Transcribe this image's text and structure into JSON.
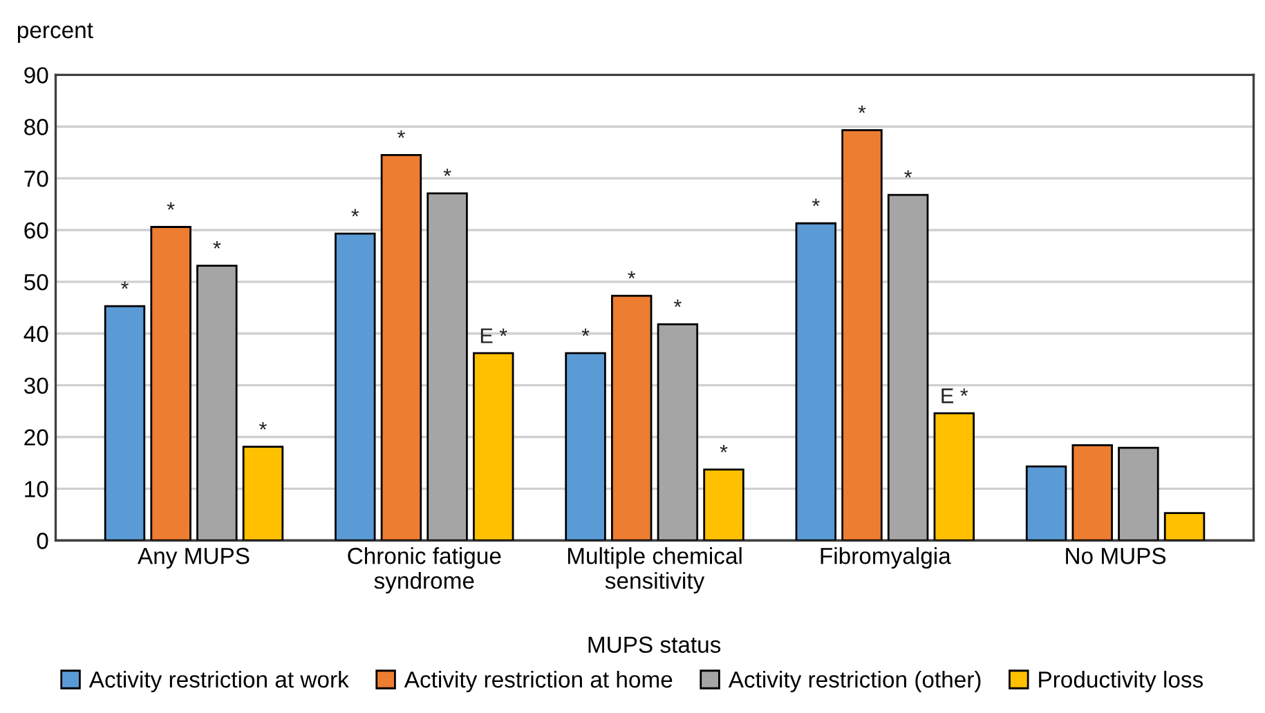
{
  "chart_data": {
    "type": "bar",
    "ylabel": "percent",
    "xlabel": "MUPS status",
    "categories": [
      "Any MUPS",
      "Chronic fatigue\nsyndrome",
      "Multiple chemical\nsensitivity",
      "Fibromyalgia",
      "No MUPS"
    ],
    "series": [
      {
        "name": "Activity restriction at work",
        "color": "#5b9bd5",
        "values": [
          45.3,
          59.3,
          36.2,
          61.3,
          14.3
        ],
        "value_labels": [
          "*",
          "*",
          "*",
          "*",
          null
        ]
      },
      {
        "name": "Activity restriction at home",
        "color": "#ed7d31",
        "values": [
          60.6,
          74.5,
          47.3,
          79.3,
          18.4
        ],
        "value_labels": [
          "*",
          "*",
          "*",
          "*",
          null
        ]
      },
      {
        "name": "Activity restriction (other)",
        "color": "#a5a5a5",
        "values": [
          53.1,
          67.1,
          41.8,
          66.8,
          17.9
        ],
        "value_labels": [
          "*",
          "*",
          "*",
          "*",
          null
        ]
      },
      {
        "name": "Productivity loss",
        "color": "#ffc000",
        "values": [
          18.1,
          36.2,
          13.7,
          24.6,
          5.3
        ],
        "value_labels": [
          "*",
          "E *",
          "*",
          "E *",
          null
        ]
      }
    ],
    "ylim": [
      0,
      90
    ],
    "yticks": [
      0,
      10,
      20,
      30,
      40,
      50,
      60,
      70,
      80,
      90
    ],
    "grid": "y",
    "legend": "bottom"
  }
}
